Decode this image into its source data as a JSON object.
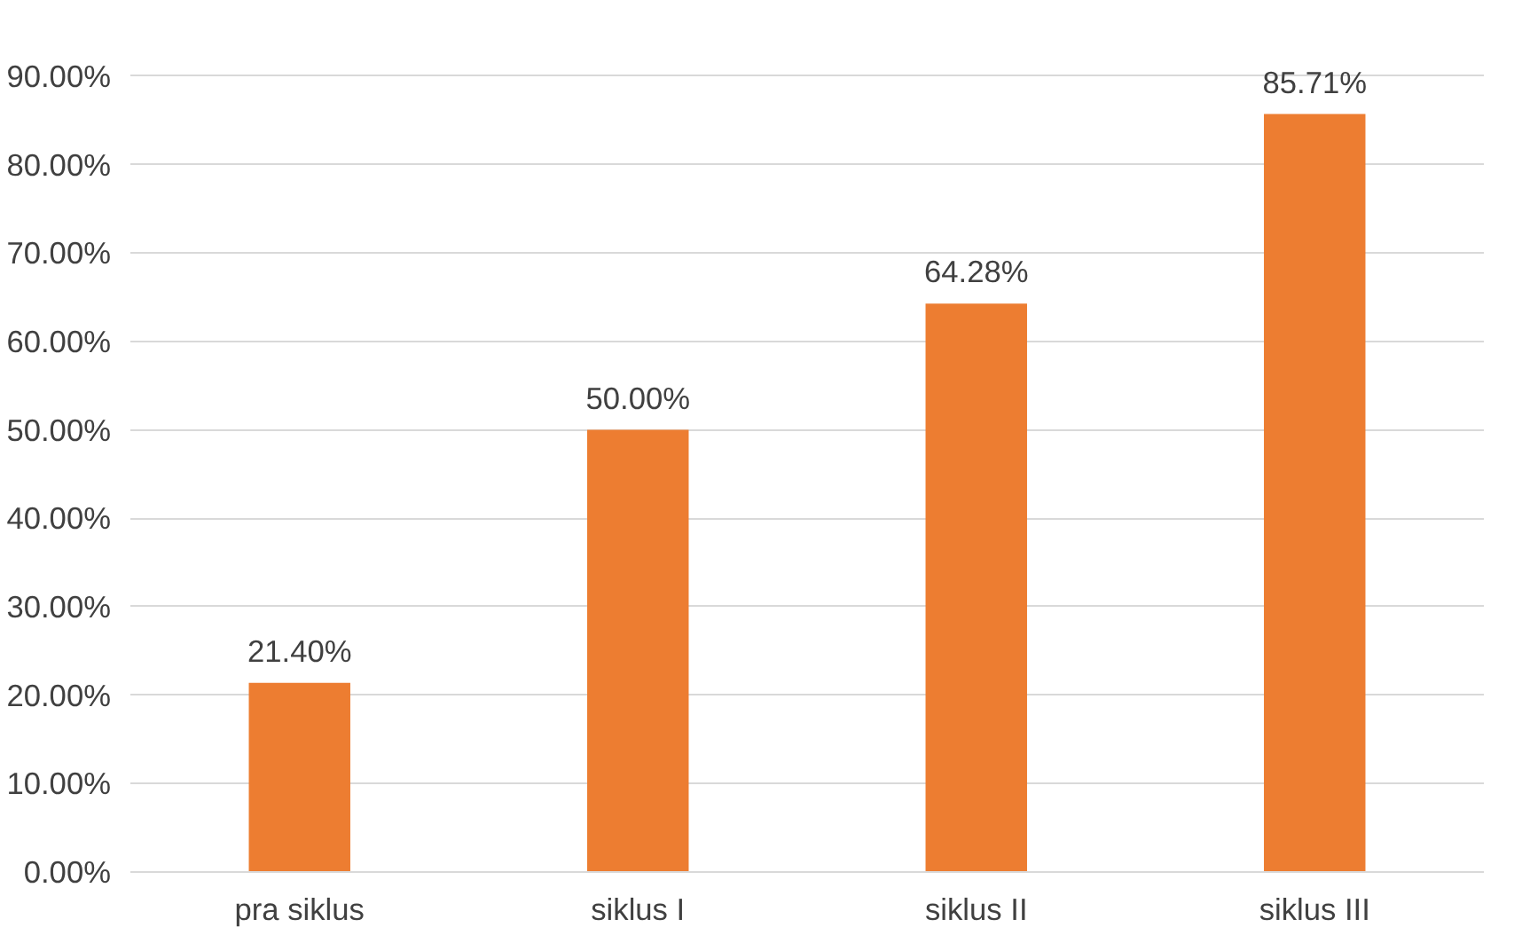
{
  "chart_data": {
    "type": "bar",
    "categories": [
      "pra siklus",
      "siklus I",
      "siklus II",
      "siklus III"
    ],
    "values": [
      21.4,
      50.0,
      64.28,
      85.71
    ],
    "color": "#ed7d31",
    "value_labels": [
      "21.40%",
      "50.00%",
      "64.28%",
      "85.71%"
    ],
    "ylim": [
      0,
      90
    ],
    "yticks": [
      {
        "value": 0,
        "label": "0.00%"
      },
      {
        "value": 10,
        "label": "10.00%"
      },
      {
        "value": 20,
        "label": "20.00%"
      },
      {
        "value": 30,
        "label": "30.00%"
      },
      {
        "value": 40,
        "label": "40.00%"
      },
      {
        "value": 50,
        "label": "50.00%"
      },
      {
        "value": 60,
        "label": "60.00%"
      },
      {
        "value": 70,
        "label": "70.00%"
      },
      {
        "value": 80,
        "label": "80.00%"
      },
      {
        "value": 90,
        "label": "90.00%"
      }
    ],
    "grid": "y"
  }
}
